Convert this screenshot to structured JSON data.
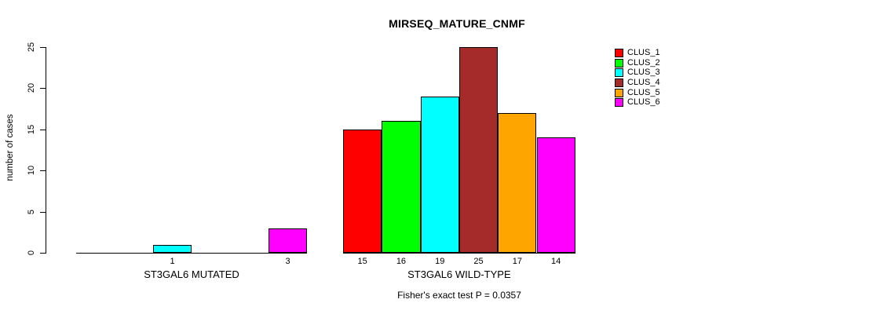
{
  "title": "MIRSEQ_MATURE_CNMF",
  "caption": "Fisher's exact test P = 0.0357",
  "chart_data": {
    "type": "bar",
    "title": "MIRSEQ_MATURE_CNMF",
    "xlabel": "",
    "ylabel": "number of cases",
    "ylim": [
      0,
      25
    ],
    "yticks": [
      0,
      5,
      10,
      15,
      20,
      25
    ],
    "grid": false,
    "legend_position": "right",
    "categories": [
      "ST3GAL6 MUTATED",
      "ST3GAL6 WILD-TYPE"
    ],
    "series": [
      {
        "name": "CLUS_1",
        "color": "#FF0000",
        "values": [
          0,
          15
        ]
      },
      {
        "name": "CLUS_2",
        "color": "#00FF00",
        "values": [
          0,
          16
        ]
      },
      {
        "name": "CLUS_3",
        "color": "#00FFFF",
        "values": [
          1,
          19
        ]
      },
      {
        "name": "CLUS_4",
        "color": "#A52A2A",
        "values": [
          0,
          25
        ]
      },
      {
        "name": "CLUS_5",
        "color": "#FFA500",
        "values": [
          0,
          17
        ]
      },
      {
        "name": "CLUS_6",
        "color": "#FF00FF",
        "values": [
          3,
          14
        ]
      }
    ],
    "bar_value_labels": "shown under each bar when value > 0",
    "annotation": "Fisher's exact test P = 0.0357"
  }
}
